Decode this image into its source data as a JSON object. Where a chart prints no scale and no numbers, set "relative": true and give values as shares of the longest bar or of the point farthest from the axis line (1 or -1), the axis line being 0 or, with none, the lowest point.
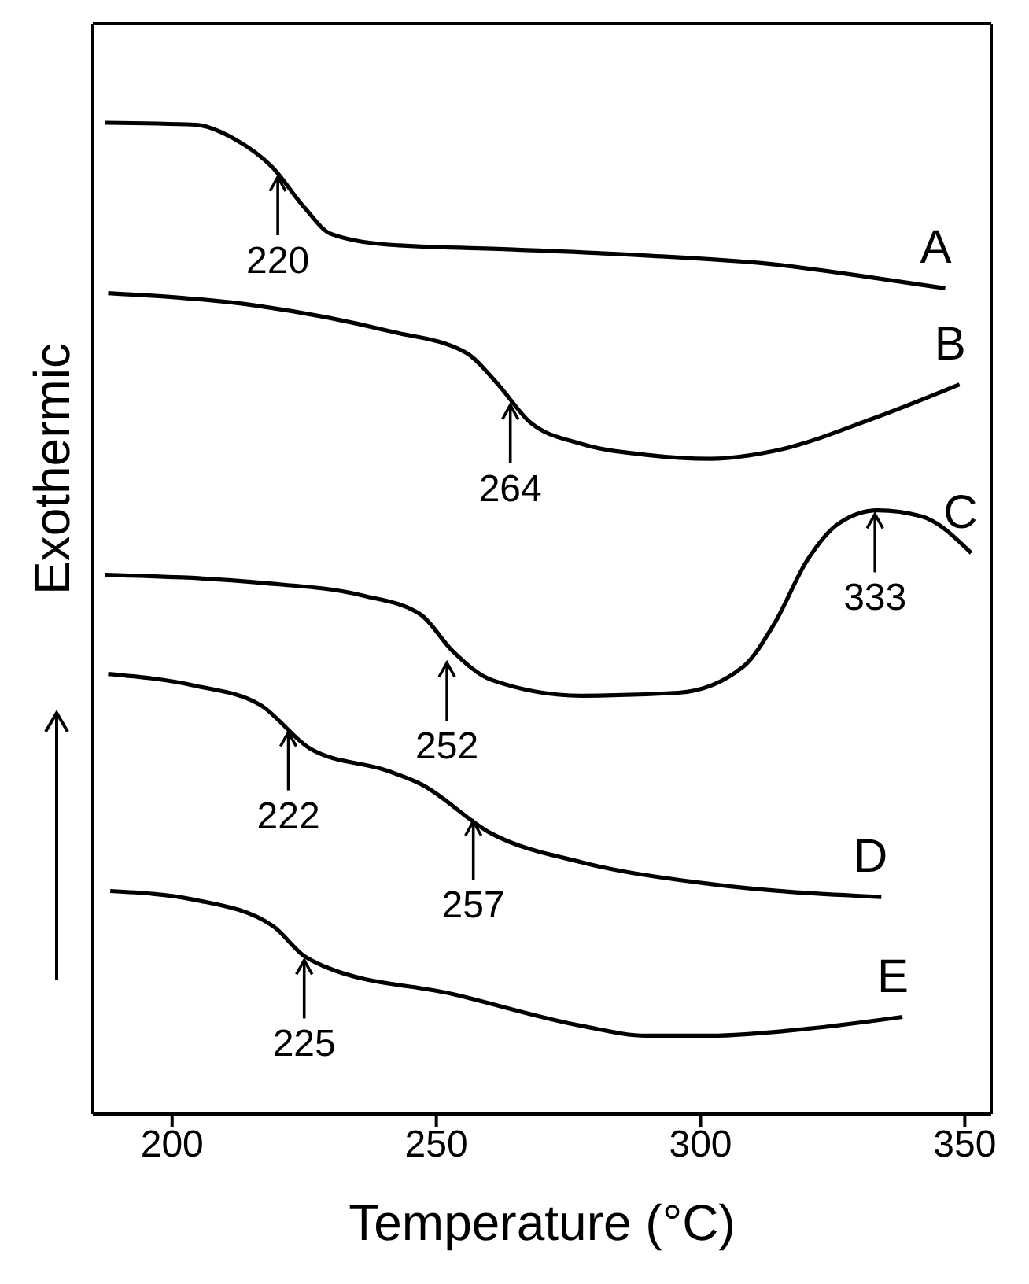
{
  "chart_data": {
    "type": "line",
    "relative": true,
    "xlabel": "Temperature (°C)",
    "ylabel": "Exothermic",
    "xlim": [
      185,
      355
    ],
    "xticks": [
      200,
      250,
      300,
      350
    ],
    "series": [
      {
        "name": "A",
        "color": "#000000",
        "x": [
          187.3,
          204.4,
          211.7,
          219,
          225.1,
          230,
          240.9,
          265.3,
          289.7,
          314,
          332.3,
          346.3
        ],
        "values": [
          1.0,
          0.998,
          0.984,
          0.955,
          0.914,
          0.888,
          0.877,
          0.872,
          0.866,
          0.857,
          0.844,
          0.833
        ]
      },
      {
        "name": "B",
        "color": "#000000",
        "x": [
          187.9,
          216.6,
          240.9,
          255.6,
          261.7,
          267.7,
          277.5,
          289.7,
          301.9,
          314,
          332.3,
          349
        ],
        "values": [
          0.828,
          0.815,
          0.79,
          0.768,
          0.736,
          0.698,
          0.676,
          0.665,
          0.661,
          0.669,
          0.701,
          0.736
        ]
      },
      {
        "name": "C",
        "color": "#000000",
        "x": [
          187.3,
          216.6,
          236.1,
          247,
          253.1,
          260.4,
          277.5,
          295.8,
          308,
          314,
          320.1,
          326.2,
          333.5,
          341.8,
          351.2
        ],
        "values": [
          0.544,
          0.536,
          0.523,
          0.504,
          0.467,
          0.438,
          0.422,
          0.425,
          0.451,
          0.495,
          0.558,
          0.596,
          0.609,
          0.603,
          0.566
        ]
      },
      {
        "name": "D",
        "color": "#000000",
        "x": [
          187.9,
          204.4,
          216.6,
          226.3,
          240.9,
          247,
          260.4,
          277.5,
          301.9,
          334.2
        ],
        "values": [
          0.444,
          0.432,
          0.413,
          0.368,
          0.346,
          0.333,
          0.283,
          0.254,
          0.232,
          0.219
        ]
      },
      {
        "name": "E",
        "color": "#000000",
        "x": [
          188.3,
          204.4,
          219,
          225.1,
          228.8,
          253.1,
          277.5,
          289.7,
          301.9,
          320.1,
          338.2
        ],
        "values": [
          0.225,
          0.216,
          0.19,
          0.159,
          0.149,
          0.121,
          0.089,
          0.079,
          0.079,
          0.086,
          0.098
        ]
      }
    ],
    "annotations": [
      {
        "text": "220",
        "x": 220,
        "y": 0.95
      },
      {
        "text": "264",
        "x": 264,
        "y": 0.72
      },
      {
        "text": "252",
        "x": 252,
        "y": 0.46
      },
      {
        "text": "333",
        "x": 333,
        "y": 0.61
      },
      {
        "text": "222",
        "x": 222,
        "y": 0.39
      },
      {
        "text": "257",
        "x": 257,
        "y": 0.3
      },
      {
        "text": "225",
        "x": 225,
        "y": 0.16
      }
    ]
  }
}
